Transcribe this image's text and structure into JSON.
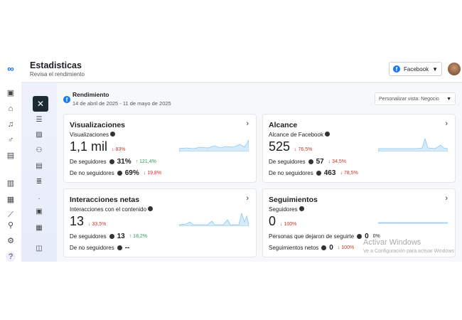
{
  "header": {
    "title": "Estadisticas",
    "subtitle": "Revisa el rendimiento",
    "platform": "Facebook"
  },
  "section": {
    "title": "Rendimiento",
    "date_range": "14 de abril de 2025 - 11 de mayo de 2025",
    "view_select": "Personalizar vista: Negocio"
  },
  "cards": [
    {
      "title": "Visualizaciones",
      "label": "Visualizaciones",
      "value": "1,1 mil",
      "change": "83%",
      "rows": [
        {
          "label": "De seguidores",
          "value": "31%",
          "change": "121,4%",
          "dir": "up"
        },
        {
          "label": "De no seguidores",
          "value": "69%",
          "change": "19,8%",
          "dir": "down"
        }
      ]
    },
    {
      "title": "Alcance",
      "label": "Alcance de Facebook",
      "value": "525",
      "change": "76,5%",
      "rows": [
        {
          "label": "De seguidores",
          "value": "57",
          "change": "34,5%",
          "dir": "down"
        },
        {
          "label": "De no seguidores",
          "value": "463",
          "change": "78,5%",
          "dir": "down"
        }
      ]
    },
    {
      "title": "Interacciones netas",
      "label": "Interacciones con el contenido",
      "value": "13",
      "change": "33,5%",
      "rows": [
        {
          "label": "De seguidores",
          "value": "13",
          "change": "18,2%",
          "dir": "up"
        },
        {
          "label": "De no seguidores",
          "value": "--",
          "change": "",
          "dir": ""
        }
      ]
    },
    {
      "title": "Seguimientos",
      "label": "Seguidores",
      "value": "0",
      "change": "100%",
      "rows": [
        {
          "label": "Personas que dejaron de seguirte",
          "value": "0",
          "change": "0%",
          "dir": ""
        },
        {
          "label": "Seguimientos netos",
          "value": "0",
          "change": "100%",
          "dir": "down"
        }
      ]
    }
  ],
  "watermark": {
    "title": "Activar Windows",
    "subtitle": "Ve a Configuración para activar Windows"
  }
}
